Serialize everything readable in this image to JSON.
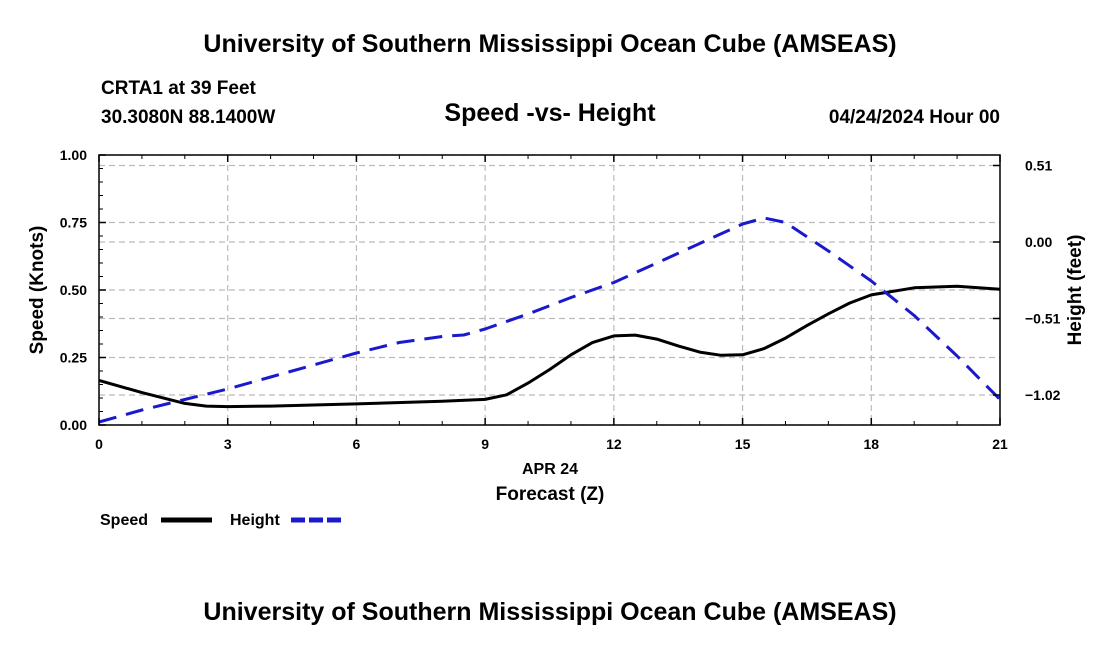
{
  "titles": {
    "main": "University of Southern Mississippi Ocean Cube (AMSEAS)",
    "footer": "University of Southern Mississippi Ocean Cube (AMSEAS)"
  },
  "station": {
    "name": "CRTA1 at 39 Feet",
    "coords": "30.3080N  88.1400W",
    "datetime": "04/24/2024 Hour 00"
  },
  "colors": {
    "speed": "#000000",
    "height": "#1a1acc",
    "grid": "#bbbbbb"
  },
  "chart_data": {
    "type": "line",
    "title": "Speed -vs- Height",
    "xlabel": "Forecast (Z)",
    "xsublabel": "APR 24",
    "ylabel": "Speed (Knots)",
    "y2label": "Height (feet)",
    "xlim": [
      0,
      21
    ],
    "ylim": [
      0,
      1
    ],
    "y2lim": [
      -1.22,
      0.58
    ],
    "x_ticks": [
      0,
      3,
      6,
      9,
      12,
      15,
      18,
      21
    ],
    "x_tick_labels": [
      "0",
      "3",
      "6",
      "9",
      "12",
      "15",
      "18",
      "21"
    ],
    "y_ticks": [
      0,
      0.25,
      0.5,
      0.75,
      1
    ],
    "y_tick_labels": [
      "0.00",
      "0.25",
      "0.50",
      "0.75",
      "1.00"
    ],
    "y2_ticks": [
      0.51,
      0,
      -0.51,
      -1.02
    ],
    "y2_tick_labels": [
      "0.51",
      "0.00",
      "−0.51",
      "−1.02"
    ],
    "grid": true,
    "series": [
      {
        "name": "Speed",
        "axis": "left",
        "style": "solid",
        "x": [
          0,
          1,
          2,
          2.5,
          3,
          4,
          6,
          8,
          9,
          9.5,
          10,
          10.5,
          11,
          11.5,
          12,
          12.5,
          13,
          13.5,
          14,
          14.5,
          15,
          15.5,
          16,
          16.5,
          17,
          17.5,
          18,
          19,
          20,
          21
        ],
        "values": [
          0.165,
          0.12,
          0.08,
          0.07,
          0.068,
          0.07,
          0.078,
          0.088,
          0.095,
          0.112,
          0.155,
          0.205,
          0.26,
          0.305,
          0.33,
          0.333,
          0.318,
          0.293,
          0.27,
          0.258,
          0.26,
          0.283,
          0.322,
          0.368,
          0.412,
          0.452,
          0.482,
          0.508,
          0.514,
          0.503
        ]
      },
      {
        "name": "Height",
        "axis": "right",
        "style": "dashed",
        "x": [
          0,
          1,
          2,
          3,
          4,
          5,
          6,
          7,
          8,
          8.5,
          9,
          10,
          11,
          12,
          13,
          14,
          15,
          15.5,
          16,
          17,
          18,
          19,
          20,
          21
        ],
        "values": [
          -1.2,
          -1.12,
          -1.05,
          -0.98,
          -0.9,
          -0.82,
          -0.74,
          -0.67,
          -0.63,
          -0.62,
          -0.58,
          -0.48,
          -0.37,
          -0.27,
          -0.14,
          -0.01,
          0.12,
          0.16,
          0.13,
          -0.06,
          -0.26,
          -0.49,
          -0.76,
          -1.05
        ]
      }
    ],
    "legend": [
      "Speed",
      "Height"
    ]
  }
}
